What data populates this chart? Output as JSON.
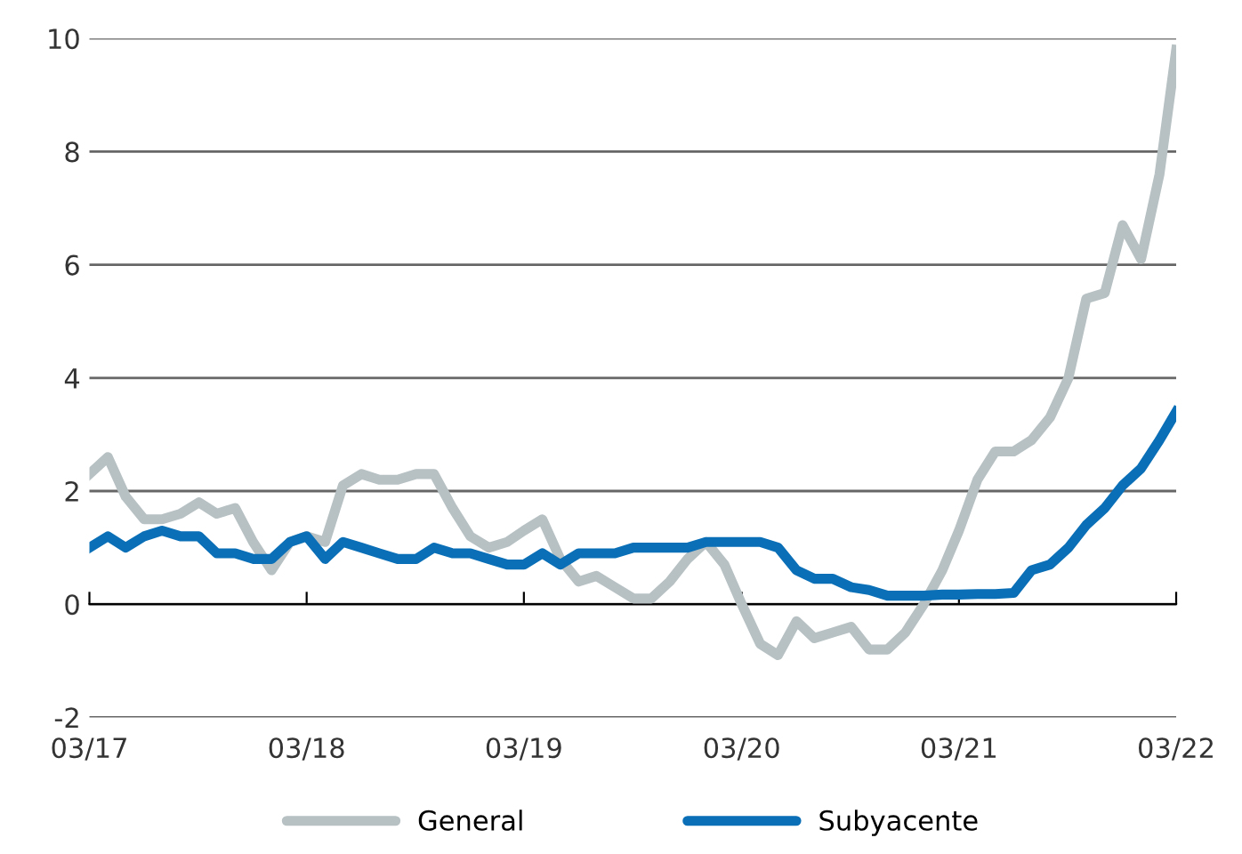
{
  "chart_data": {
    "type": "line",
    "x": [
      "2017-03",
      "2017-04",
      "2017-05",
      "2017-06",
      "2017-07",
      "2017-08",
      "2017-09",
      "2017-10",
      "2017-11",
      "2017-12",
      "2018-01",
      "2018-02",
      "2018-03",
      "2018-04",
      "2018-05",
      "2018-06",
      "2018-07",
      "2018-08",
      "2018-09",
      "2018-10",
      "2018-11",
      "2018-12",
      "2019-01",
      "2019-02",
      "2019-03",
      "2019-04",
      "2019-05",
      "2019-06",
      "2019-07",
      "2019-08",
      "2019-09",
      "2019-10",
      "2019-11",
      "2019-12",
      "2020-01",
      "2020-02",
      "2020-03",
      "2020-04",
      "2020-05",
      "2020-06",
      "2020-07",
      "2020-08",
      "2020-09",
      "2020-10",
      "2020-11",
      "2020-12",
      "2021-01",
      "2021-02",
      "2021-03",
      "2021-04",
      "2021-05",
      "2021-06",
      "2021-07",
      "2021-08",
      "2021-09",
      "2021-10",
      "2021-11",
      "2021-12",
      "2022-01",
      "2022-02",
      "2022-03"
    ],
    "series": [
      {
        "name": "General",
        "color": "#b7c0c3",
        "values": [
          2.3,
          2.6,
          1.9,
          1.5,
          1.5,
          1.6,
          1.8,
          1.6,
          1.7,
          1.1,
          0.6,
          1.1,
          1.2,
          1.1,
          2.1,
          2.3,
          2.2,
          2.2,
          2.3,
          2.3,
          1.7,
          1.2,
          1.0,
          1.1,
          1.3,
          1.5,
          0.8,
          0.4,
          0.5,
          0.3,
          0.1,
          0.1,
          0.4,
          0.8,
          1.1,
          0.7,
          0.0,
          -0.7,
          -0.9,
          -0.3,
          -0.6,
          -0.5,
          -0.4,
          -0.8,
          -0.8,
          -0.5,
          0.0,
          0.6,
          1.3,
          2.2,
          2.7,
          2.7,
          2.9,
          3.3,
          4.0,
          5.4,
          5.5,
          6.7,
          6.1,
          7.6,
          9.8
        ]
      },
      {
        "name": "Subyacente",
        "color": "#0a6fb6",
        "values": [
          1.0,
          1.2,
          1.0,
          1.2,
          1.3,
          1.2,
          1.2,
          0.9,
          0.9,
          0.8,
          0.8,
          1.1,
          1.2,
          0.8,
          1.1,
          1.0,
          0.9,
          0.8,
          0.8,
          1.0,
          0.9,
          0.9,
          0.8,
          0.7,
          0.7,
          0.9,
          0.7,
          0.9,
          0.9,
          0.9,
          1.0,
          1.0,
          1.0,
          1.0,
          1.1,
          1.1,
          1.1,
          1.1,
          1.0,
          0.6,
          0.45,
          0.45,
          0.3,
          0.25,
          0.15,
          0.15,
          0.15,
          0.17,
          0.17,
          0.18,
          0.18,
          0.2,
          0.6,
          0.7,
          1.0,
          1.4,
          1.7,
          2.1,
          2.4,
          2.9,
          3.4
        ]
      }
    ],
    "xlim": [
      "2017-03",
      "2022-03"
    ],
    "xticks": [
      {
        "value": "2017-03",
        "label": "03/17"
      },
      {
        "value": "2018-03",
        "label": "03/18"
      },
      {
        "value": "2019-03",
        "label": "03/19"
      },
      {
        "value": "2020-03",
        "label": "03/20"
      },
      {
        "value": "2021-03",
        "label": "03/21"
      },
      {
        "value": "2022-03",
        "label": "03/22"
      }
    ],
    "ylim": [
      -2,
      10
    ],
    "yticks": [
      -2,
      0,
      2,
      4,
      6,
      8,
      10
    ],
    "grid": "y",
    "legend": "bottom",
    "marker": "none",
    "line_style": "solid"
  }
}
